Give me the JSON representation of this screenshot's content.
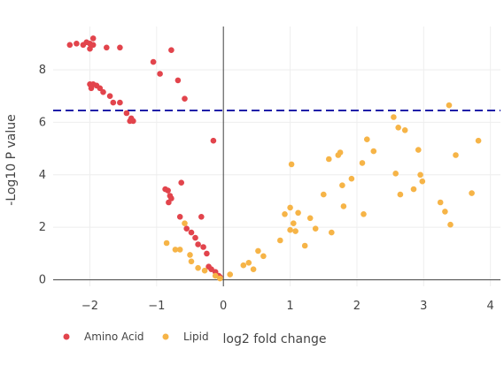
{
  "chart_data": {
    "type": "scatter",
    "title": "",
    "xlabel": "log2 fold change",
    "ylabel": "-Log10 P value",
    "xlim": [
      -2.55,
      4.15
    ],
    "ylim": [
      -0.25,
      9.65
    ],
    "x_ticks": [
      -2,
      -1,
      0,
      1,
      2,
      3,
      4
    ],
    "x_tick_labels": [
      "−2",
      "−1",
      "0",
      "1",
      "2",
      "3",
      "4"
    ],
    "y_ticks": [
      0,
      2,
      4,
      6,
      8
    ],
    "y_tick_labels": [
      "0",
      "2",
      "4",
      "6",
      "8"
    ],
    "grid": true,
    "zero_line_x": true,
    "threshold": {
      "y": 6.45,
      "color": "#1f1fa8",
      "style": "dashed"
    },
    "legend_position": "bottom-left",
    "series": [
      {
        "name": "Amino Acid",
        "color": "#e2444c",
        "points": [
          [
            -2.3,
            8.95
          ],
          [
            -2.2,
            9.0
          ],
          [
            -2.1,
            8.95
          ],
          [
            -2.05,
            9.05
          ],
          [
            -2.0,
            9.0
          ],
          [
            -1.95,
            9.2
          ],
          [
            -1.95,
            8.95
          ],
          [
            -2.0,
            8.8
          ],
          [
            -1.75,
            8.85
          ],
          [
            -1.55,
            8.85
          ],
          [
            -1.05,
            8.3
          ],
          [
            -0.95,
            7.85
          ],
          [
            -0.78,
            8.75
          ],
          [
            -0.68,
            7.6
          ],
          [
            -0.58,
            6.9
          ],
          [
            -2.0,
            7.45
          ],
          [
            -1.95,
            7.45
          ],
          [
            -1.98,
            7.3
          ],
          [
            -1.9,
            7.4
          ],
          [
            -1.85,
            7.3
          ],
          [
            -1.8,
            7.15
          ],
          [
            -1.7,
            7.0
          ],
          [
            -1.65,
            6.75
          ],
          [
            -1.55,
            6.75
          ],
          [
            -1.45,
            6.35
          ],
          [
            -1.38,
            6.15
          ],
          [
            -1.35,
            6.05
          ],
          [
            -1.4,
            6.05
          ],
          [
            -0.15,
            5.3
          ],
          [
            -0.63,
            3.7
          ],
          [
            -0.87,
            3.45
          ],
          [
            -0.83,
            3.4
          ],
          [
            -0.8,
            3.2
          ],
          [
            -0.78,
            3.1
          ],
          [
            -0.82,
            2.95
          ],
          [
            -0.33,
            2.4
          ],
          [
            -0.65,
            2.4
          ],
          [
            -0.55,
            1.95
          ],
          [
            -0.48,
            1.8
          ],
          [
            -0.42,
            1.6
          ],
          [
            -0.38,
            1.35
          ],
          [
            -0.3,
            1.25
          ],
          [
            -0.25,
            1.0
          ],
          [
            -0.22,
            0.5
          ],
          [
            -0.18,
            0.4
          ],
          [
            -0.12,
            0.3
          ],
          [
            -0.07,
            0.15
          ],
          [
            -0.05,
            0.1
          ]
        ]
      },
      {
        "name": "Lipid",
        "color": "#f6b447",
        "points": [
          [
            -0.85,
            1.4
          ],
          [
            -0.72,
            1.15
          ],
          [
            -0.65,
            1.15
          ],
          [
            -0.58,
            2.15
          ],
          [
            -0.5,
            0.95
          ],
          [
            -0.48,
            0.7
          ],
          [
            -0.38,
            0.45
          ],
          [
            -0.28,
            0.35
          ],
          [
            -0.12,
            0.15
          ],
          [
            -0.05,
            0.05
          ],
          [
            0.1,
            0.2
          ],
          [
            0.3,
            0.55
          ],
          [
            0.38,
            0.65
          ],
          [
            0.45,
            0.4
          ],
          [
            0.52,
            1.1
          ],
          [
            0.6,
            0.9
          ],
          [
            0.85,
            1.5
          ],
          [
            0.92,
            2.5
          ],
          [
            1.0,
            1.9
          ],
          [
            1.0,
            2.75
          ],
          [
            1.02,
            4.4
          ],
          [
            1.05,
            2.15
          ],
          [
            1.08,
            1.85
          ],
          [
            1.12,
            2.55
          ],
          [
            1.22,
            1.3
          ],
          [
            1.3,
            2.35
          ],
          [
            1.38,
            1.95
          ],
          [
            1.5,
            3.25
          ],
          [
            1.58,
            4.6
          ],
          [
            1.62,
            1.8
          ],
          [
            1.72,
            4.75
          ],
          [
            1.75,
            4.85
          ],
          [
            1.78,
            3.6
          ],
          [
            1.8,
            2.8
          ],
          [
            1.92,
            3.85
          ],
          [
            2.08,
            4.45
          ],
          [
            2.1,
            2.5
          ],
          [
            2.15,
            5.35
          ],
          [
            2.25,
            4.9
          ],
          [
            2.55,
            6.2
          ],
          [
            2.58,
            4.05
          ],
          [
            2.62,
            5.8
          ],
          [
            2.65,
            3.25
          ],
          [
            2.72,
            5.7
          ],
          [
            2.85,
            3.45
          ],
          [
            2.92,
            4.95
          ],
          [
            2.95,
            4.0
          ],
          [
            2.98,
            3.75
          ],
          [
            3.25,
            2.95
          ],
          [
            3.32,
            2.6
          ],
          [
            3.38,
            6.65
          ],
          [
            3.4,
            2.1
          ],
          [
            3.48,
            4.75
          ],
          [
            3.72,
            3.3
          ],
          [
            3.82,
            5.3
          ]
        ]
      }
    ]
  }
}
